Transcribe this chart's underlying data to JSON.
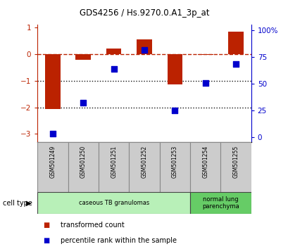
{
  "title": "GDS4256 / Hs.9270.0.A1_3p_at",
  "samples": [
    "GSM501249",
    "GSM501250",
    "GSM501251",
    "GSM501252",
    "GSM501253",
    "GSM501254",
    "GSM501255"
  ],
  "red_bars": [
    -2.05,
    -0.22,
    0.22,
    0.55,
    -1.15,
    -0.03,
    0.85
  ],
  "blue_dots_left": [
    -3.0,
    -1.82,
    -0.55,
    0.15,
    -2.12,
    -1.08,
    -0.38
  ],
  "ylim_left": [
    -3.3,
    1.1
  ],
  "ylim_right": [
    -4.5,
    105
  ],
  "yticks_left": [
    -3,
    -2,
    -1,
    0,
    1
  ],
  "yticks_right": [
    0,
    25,
    50,
    75,
    100
  ],
  "ytick_right_labels": [
    "0",
    "25",
    "50",
    "75",
    "100%"
  ],
  "cell_type_groups": [
    {
      "label": "caseous TB granulomas",
      "start": 0,
      "end": 5,
      "color": "#b8f0b8"
    },
    {
      "label": "normal lung\nparenchyma",
      "start": 5,
      "end": 7,
      "color": "#66cc66"
    }
  ],
  "cell_type_label": "cell type",
  "legend_red": "transformed count",
  "legend_blue": "percentile rank within the sample",
  "bar_color": "#bb2200",
  "dot_color": "#0000cc",
  "hline_color": "#bb2200",
  "dotted_line_color": "#111111",
  "bar_width": 0.5,
  "dot_size": 28,
  "sample_box_color": "#cccccc",
  "sample_box_edge": "#888888"
}
